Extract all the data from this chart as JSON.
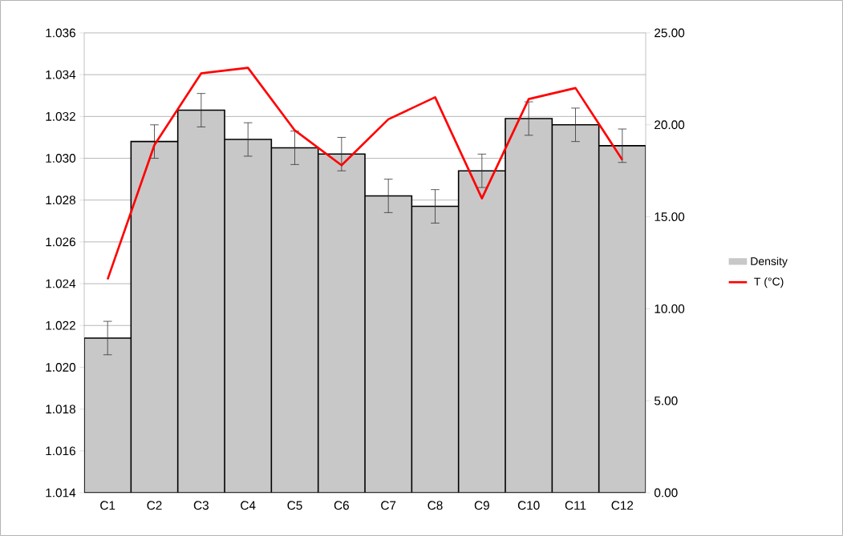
{
  "chart_data": {
    "type": "bar",
    "categories": [
      "C1",
      "C2",
      "C3",
      "C4",
      "C5",
      "C6",
      "C7",
      "C8",
      "C9",
      "C10",
      "C11",
      "C12"
    ],
    "series": [
      {
        "name": "Density",
        "color": "#c8c8c8",
        "values": [
          1.0214,
          1.0308,
          1.0323,
          1.0309,
          1.0305,
          1.0302,
          1.0282,
          1.0277,
          1.0294,
          1.0319,
          1.0316,
          1.0306
        ],
        "errors": [
          0.0008,
          0.0008,
          0.0008,
          0.0008,
          0.0008,
          0.0008,
          0.0008,
          0.0008,
          0.0008,
          0.0008,
          0.0008,
          0.0008
        ]
      },
      {
        "name": "T (°C)",
        "type": "line",
        "axis": "y2",
        "color": "#ff0000",
        "values": [
          11.6,
          18.9,
          22.8,
          23.1,
          19.7,
          17.8,
          20.3,
          21.5,
          16.0,
          21.4,
          22.0,
          18.1
        ]
      }
    ],
    "ylim": [
      1.014,
      1.036
    ],
    "yticks": [
      1.014,
      1.016,
      1.018,
      {
        "value": 1.02,
        "label": "1.020"
      },
      1.022,
      1.024,
      1.026,
      1.028,
      {
        "value": 1.03,
        "label": "1.030"
      },
      1.032,
      1.034,
      1.036
    ],
    "y2lim": [
      0,
      25
    ],
    "y2ticks": [
      {
        "value": 0,
        "label": "0.00"
      },
      {
        "value": 5,
        "label": "5.00"
      },
      {
        "value": 10,
        "label": "10.00"
      },
      {
        "value": 15,
        "label": "15.00"
      },
      {
        "value": 20,
        "label": "20.00"
      },
      {
        "value": 25,
        "label": "25.00"
      }
    ],
    "grid": "y",
    "legend": "right"
  }
}
